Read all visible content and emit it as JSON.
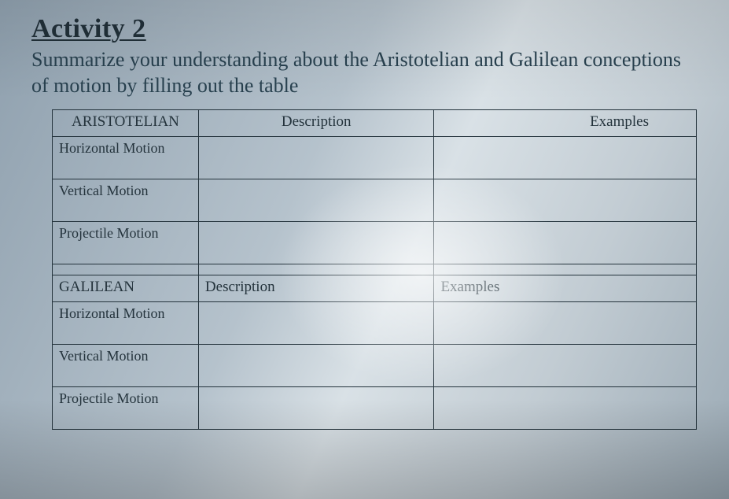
{
  "title": "Activity 2",
  "instructions": "Summarize your understanding about the Aristotelian and Galilean conceptions of motion by filling out the table",
  "table": {
    "border_color": "#24333c",
    "sections": [
      {
        "name_header": "ARISTOTELIAN",
        "desc_header": "Description",
        "ex_header": "Examples",
        "rows": [
          {
            "label": "Horizontal Motion",
            "description": "",
            "examples": ""
          },
          {
            "label": "Vertical Motion",
            "description": "",
            "examples": ""
          },
          {
            "label": "Projectile Motion",
            "description": "",
            "examples": ""
          }
        ]
      },
      {
        "name_header": "GALILEAN",
        "desc_header": "Description",
        "ex_header": "Examples",
        "rows": [
          {
            "label": "Horizontal Motion",
            "description": "",
            "examples": ""
          },
          {
            "label": "Vertical Motion",
            "description": "",
            "examples": ""
          },
          {
            "label": "Projectile Motion",
            "description": "",
            "examples": ""
          }
        ]
      }
    ]
  }
}
